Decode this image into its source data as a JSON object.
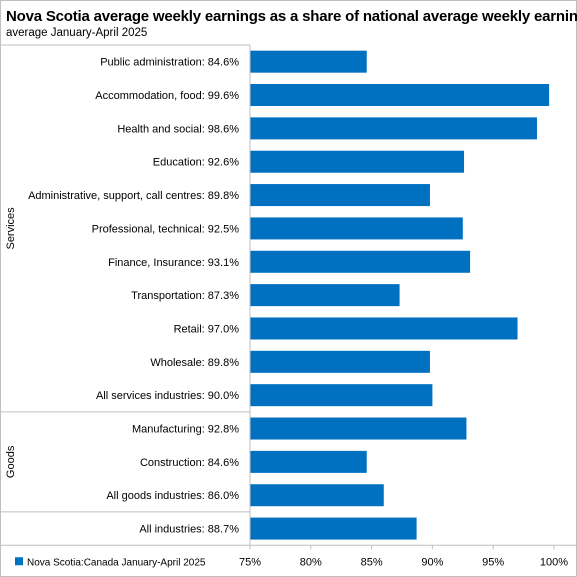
{
  "chart_data": {
    "type": "bar",
    "orientation": "horizontal",
    "title": "Nova Scotia average weekly earnings as a share of national average weekly earnings",
    "subtitle": "average January-April 2025",
    "groups": [
      {
        "name": "Services",
        "categories": [
          "Public administration: 84.6%",
          "Accommodation, food: 99.6%",
          "Health and social: 98.6%",
          "Education: 92.6%",
          "Administrative, support, call centres: 89.8%",
          "Professional, technical: 92.5%",
          "Finance, Insurance: 93.1%",
          "Transportation: 87.3%",
          "Retail: 97.0%",
          "Wholesale: 89.8%",
          "All services industries: 90.0%"
        ],
        "values": [
          84.6,
          99.6,
          98.6,
          92.6,
          89.8,
          92.5,
          93.1,
          87.3,
          97.0,
          89.8,
          90.0
        ]
      },
      {
        "name": "Goods",
        "categories": [
          "Manufacturing: 92.8%",
          "Construction: 84.6%",
          "All goods industries: 86.0%"
        ],
        "values": [
          92.8,
          84.6,
          86.0
        ]
      },
      {
        "name": "",
        "categories": [
          "All industries: 88.7%"
        ],
        "values": [
          88.7
        ]
      }
    ],
    "series": [
      {
        "name": "Nova Scotia:Canada January-April 2025",
        "color": "#0070c0"
      }
    ],
    "xlim": [
      75,
      100
    ],
    "xticks": [
      "75%",
      "80%",
      "85%",
      "90%",
      "95%",
      "100%"
    ],
    "grid": false,
    "legend_position": "bottom-left"
  }
}
